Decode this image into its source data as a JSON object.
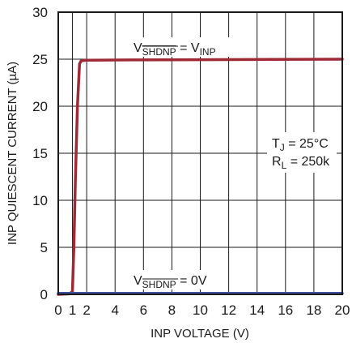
{
  "chart_data": {
    "type": "line",
    "xlabel": "INP VOLTAGE (V)",
    "ylabel": "INP QUIESCENT CURRENT (µA)",
    "xlim": [
      0,
      20
    ],
    "ylim": [
      0,
      30
    ],
    "x_ticks": [
      "0",
      "1",
      "2",
      "4",
      "6",
      "8",
      "10",
      "12",
      "14",
      "16",
      "18",
      "20"
    ],
    "y_ticks": [
      "0",
      "5",
      "10",
      "15",
      "20",
      "25",
      "30"
    ],
    "grid": true,
    "series": [
      {
        "name": "V_SHDNP = V_INP",
        "color": "#9e2a36",
        "x": [
          0,
          0.8,
          1.0,
          1.1,
          1.2,
          1.35,
          1.5,
          1.6,
          1.7,
          2,
          5,
          10,
          15,
          20
        ],
        "y": [
          0,
          0.05,
          0.3,
          5,
          12,
          20,
          24.5,
          24.8,
          24.85,
          24.9,
          24.92,
          24.95,
          24.97,
          25
        ]
      },
      {
        "name": "V_SHDNP = 0V",
        "color": "#3d4f9e",
        "x": [
          0,
          20
        ],
        "y": [
          0.1,
          0.1
        ]
      }
    ],
    "annotations": {
      "top_label": {
        "v": "V",
        "sub": "SHDNP",
        "eq": " = V",
        "sub2": "INP"
      },
      "bottom_label": {
        "v": "V",
        "sub": "SHDNP",
        "eq": " = 0V"
      },
      "conditions": {
        "tj_main": "T",
        "tj_sub": "J",
        "tj_rest": " = 25°C",
        "rl_main": "R",
        "rl_sub": "L",
        "rl_rest": " = 250k"
      }
    }
  }
}
